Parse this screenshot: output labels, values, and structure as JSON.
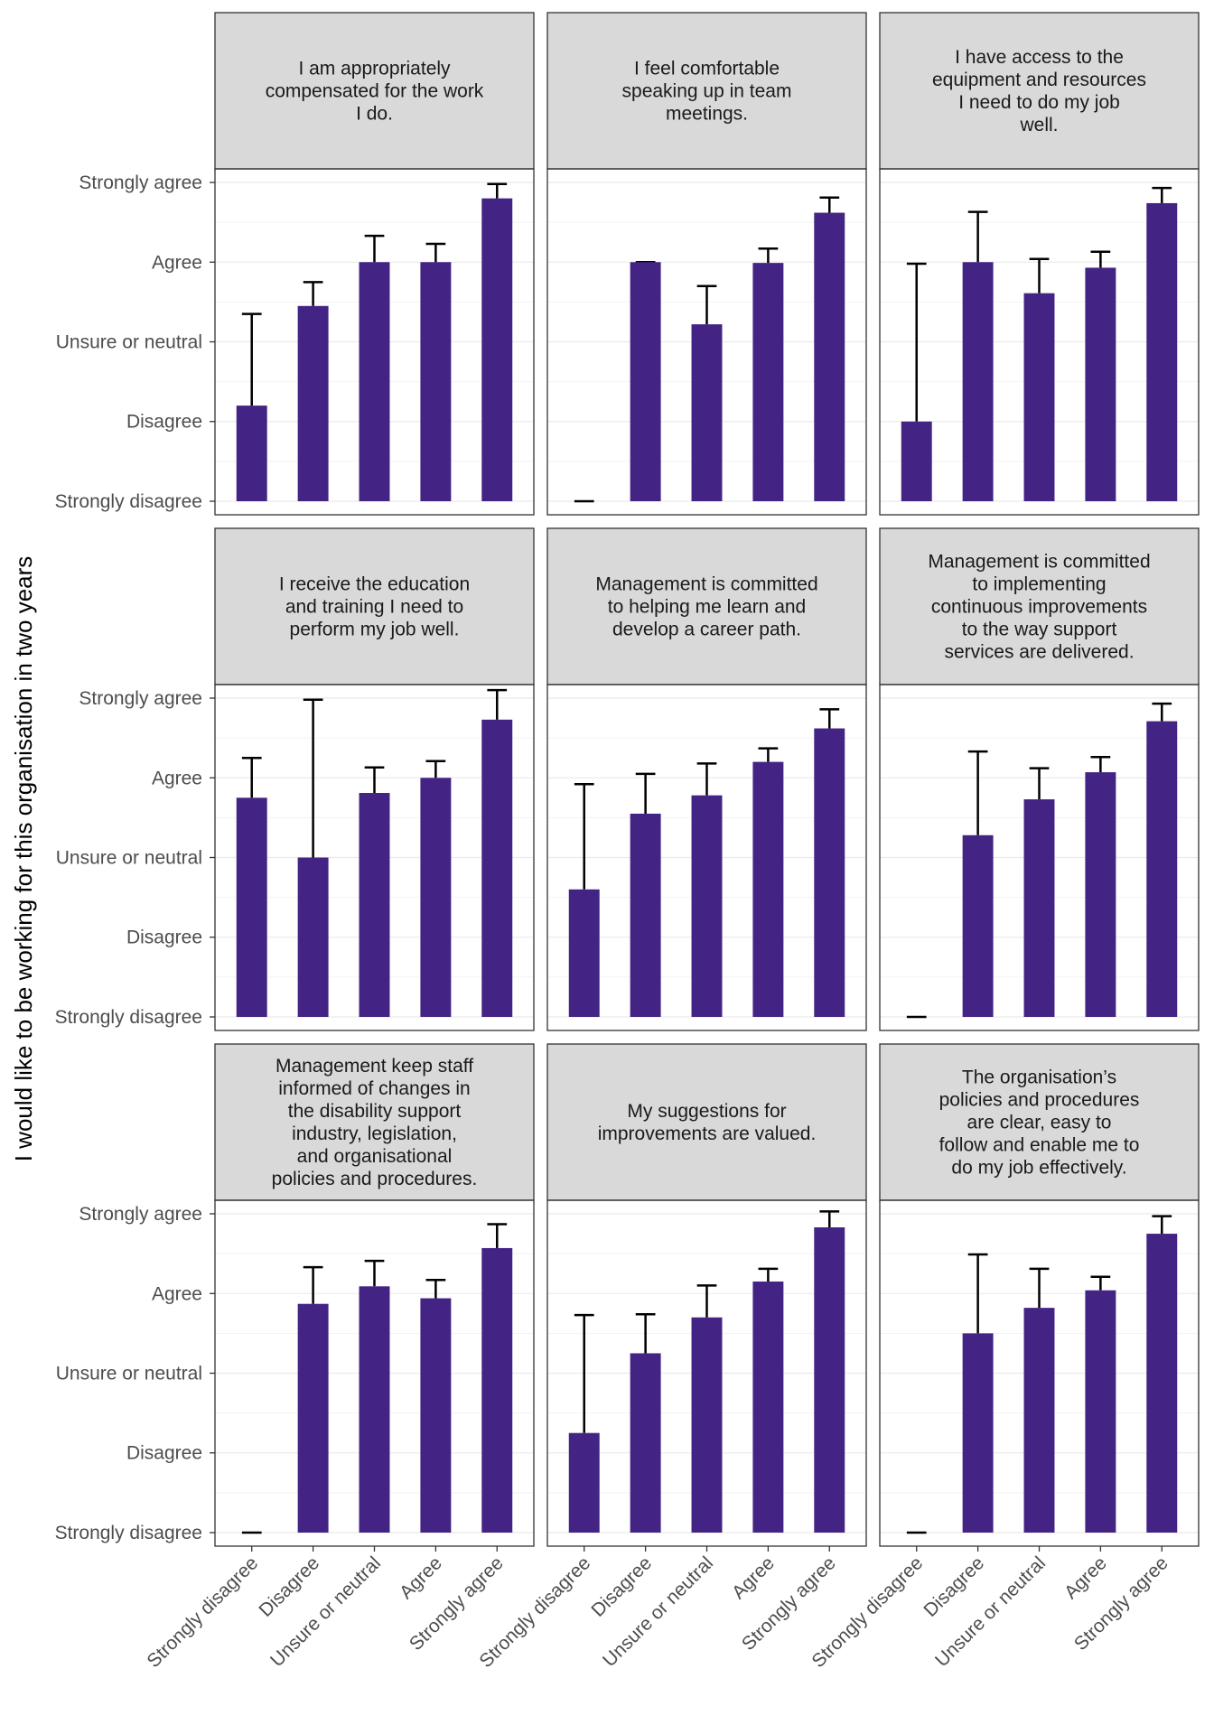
{
  "colors": {
    "bar": "#432484",
    "strip_bg": "#d9d9d9",
    "grid_major": "#ebebeb",
    "grid_minor": "#f2f2f2",
    "panel_border": "#333333",
    "error_bar": "#000000"
  },
  "chart_data": {
    "type": "bar",
    "facets": 3,
    "layout": "3x3 facet grid",
    "ylabel": "I would like to be working for this organisation in two years",
    "xlabel": "",
    "categories": [
      "Strongly disagree",
      "Disagree",
      "Unsure or neutral",
      "Agree",
      "Strongly agree"
    ],
    "y_ticks": [
      "Strongly disagree",
      "Disagree",
      "Unsure or neutral",
      "Agree",
      "Strongly agree"
    ],
    "ylim": [
      1,
      5
    ],
    "grid": true,
    "panels": [
      {
        "title_lines": [
          "I am appropriately",
          "compensated for the work",
          "I do."
        ],
        "values": [
          2.2,
          3.45,
          4.0,
          4.0,
          4.8
        ],
        "err_upper": [
          3.35,
          3.75,
          4.33,
          4.23,
          4.98
        ]
      },
      {
        "title_lines": [
          "I feel comfortable",
          "speaking up in team",
          "meetings."
        ],
        "values": [
          1.0,
          4.0,
          3.22,
          3.99,
          4.62
        ],
        "err_upper": [
          1.0,
          4.0,
          3.7,
          4.17,
          4.81
        ]
      },
      {
        "title_lines": [
          "I have access to the",
          "equipment and resources",
          "I need to do my job",
          "well."
        ],
        "values": [
          2.0,
          4.0,
          3.61,
          3.93,
          4.74
        ],
        "err_upper": [
          3.98,
          4.63,
          4.04,
          4.13,
          4.93
        ]
      },
      {
        "title_lines": [
          "I receive the education",
          "and training I need to",
          "perform my job well."
        ],
        "values": [
          3.75,
          3.0,
          3.81,
          4.0,
          4.73
        ],
        "err_upper": [
          4.25,
          4.98,
          4.13,
          4.21,
          5.1
        ]
      },
      {
        "title_lines": [
          "Management is committed",
          "to helping me learn and",
          "develop a career path."
        ],
        "values": [
          2.6,
          3.55,
          3.78,
          4.2,
          4.62
        ],
        "err_upper": [
          3.92,
          4.05,
          4.18,
          4.37,
          4.86
        ]
      },
      {
        "title_lines": [
          "Management is committed",
          "to implementing",
          "continuous improvements",
          "to the way support",
          "services are delivered."
        ],
        "values": [
          1.0,
          3.28,
          3.73,
          4.07,
          4.71
        ],
        "err_upper": [
          1.0,
          4.33,
          4.12,
          4.26,
          4.93
        ]
      },
      {
        "title_lines": [
          "Management keep staff",
          "informed of changes in",
          "the disability support",
          "industry, legislation,",
          "and organisational",
          "policies and procedures."
        ],
        "values": [
          1.0,
          3.87,
          4.09,
          3.94,
          4.57
        ],
        "err_upper": [
          1.0,
          4.33,
          4.41,
          4.17,
          4.87
        ]
      },
      {
        "title_lines": [
          "My suggestions for",
          "improvements are valued."
        ],
        "values": [
          2.25,
          3.25,
          3.7,
          4.15,
          4.83
        ],
        "err_upper": [
          3.73,
          3.74,
          4.1,
          4.31,
          5.03
        ]
      },
      {
        "title_lines": [
          "The organisation’s",
          "policies and procedures",
          "are clear, easy to",
          "follow and enable me to",
          "do my job effectively."
        ],
        "values": [
          1.0,
          3.5,
          3.82,
          4.04,
          4.75
        ],
        "err_upper": [
          1.0,
          4.49,
          4.31,
          4.21,
          4.97
        ]
      }
    ]
  }
}
